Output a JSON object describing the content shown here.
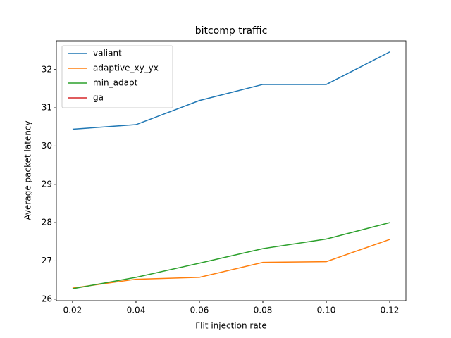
{
  "chart_data": {
    "type": "line",
    "title": "bitcomp traffic",
    "xlabel": "Flit injection rate",
    "ylabel": "Average packet latency",
    "x": [
      0.02,
      0.04,
      0.06,
      0.08,
      0.1,
      0.12
    ],
    "series": [
      {
        "name": "valiant",
        "color": "#1f77b4",
        "values": [
          30.44,
          30.56,
          31.19,
          31.61,
          31.61,
          32.46
        ]
      },
      {
        "name": "adaptive_xy_yx",
        "color": "#ff7f0e",
        "values": [
          26.29,
          26.52,
          26.57,
          26.96,
          26.98,
          27.56
        ]
      },
      {
        "name": "min_adapt",
        "color": "#2ca02c",
        "values": [
          26.27,
          26.57,
          26.94,
          27.32,
          27.57,
          28.0
        ]
      },
      {
        "name": "ga",
        "color": "#d62728",
        "values": [
          null,
          null,
          null,
          null,
          null,
          null
        ]
      }
    ],
    "xlim": [
      0.0149,
      0.1251
    ],
    "ylim": [
      25.96,
      32.75
    ],
    "xticks": [
      0.02,
      0.04,
      0.06,
      0.08,
      {
        "value": 0.1,
        "label": "0.10"
      },
      0.12
    ],
    "yticks": [
      26,
      27,
      28,
      29,
      30,
      31,
      32
    ],
    "legend": "upper left",
    "grid": false
  }
}
